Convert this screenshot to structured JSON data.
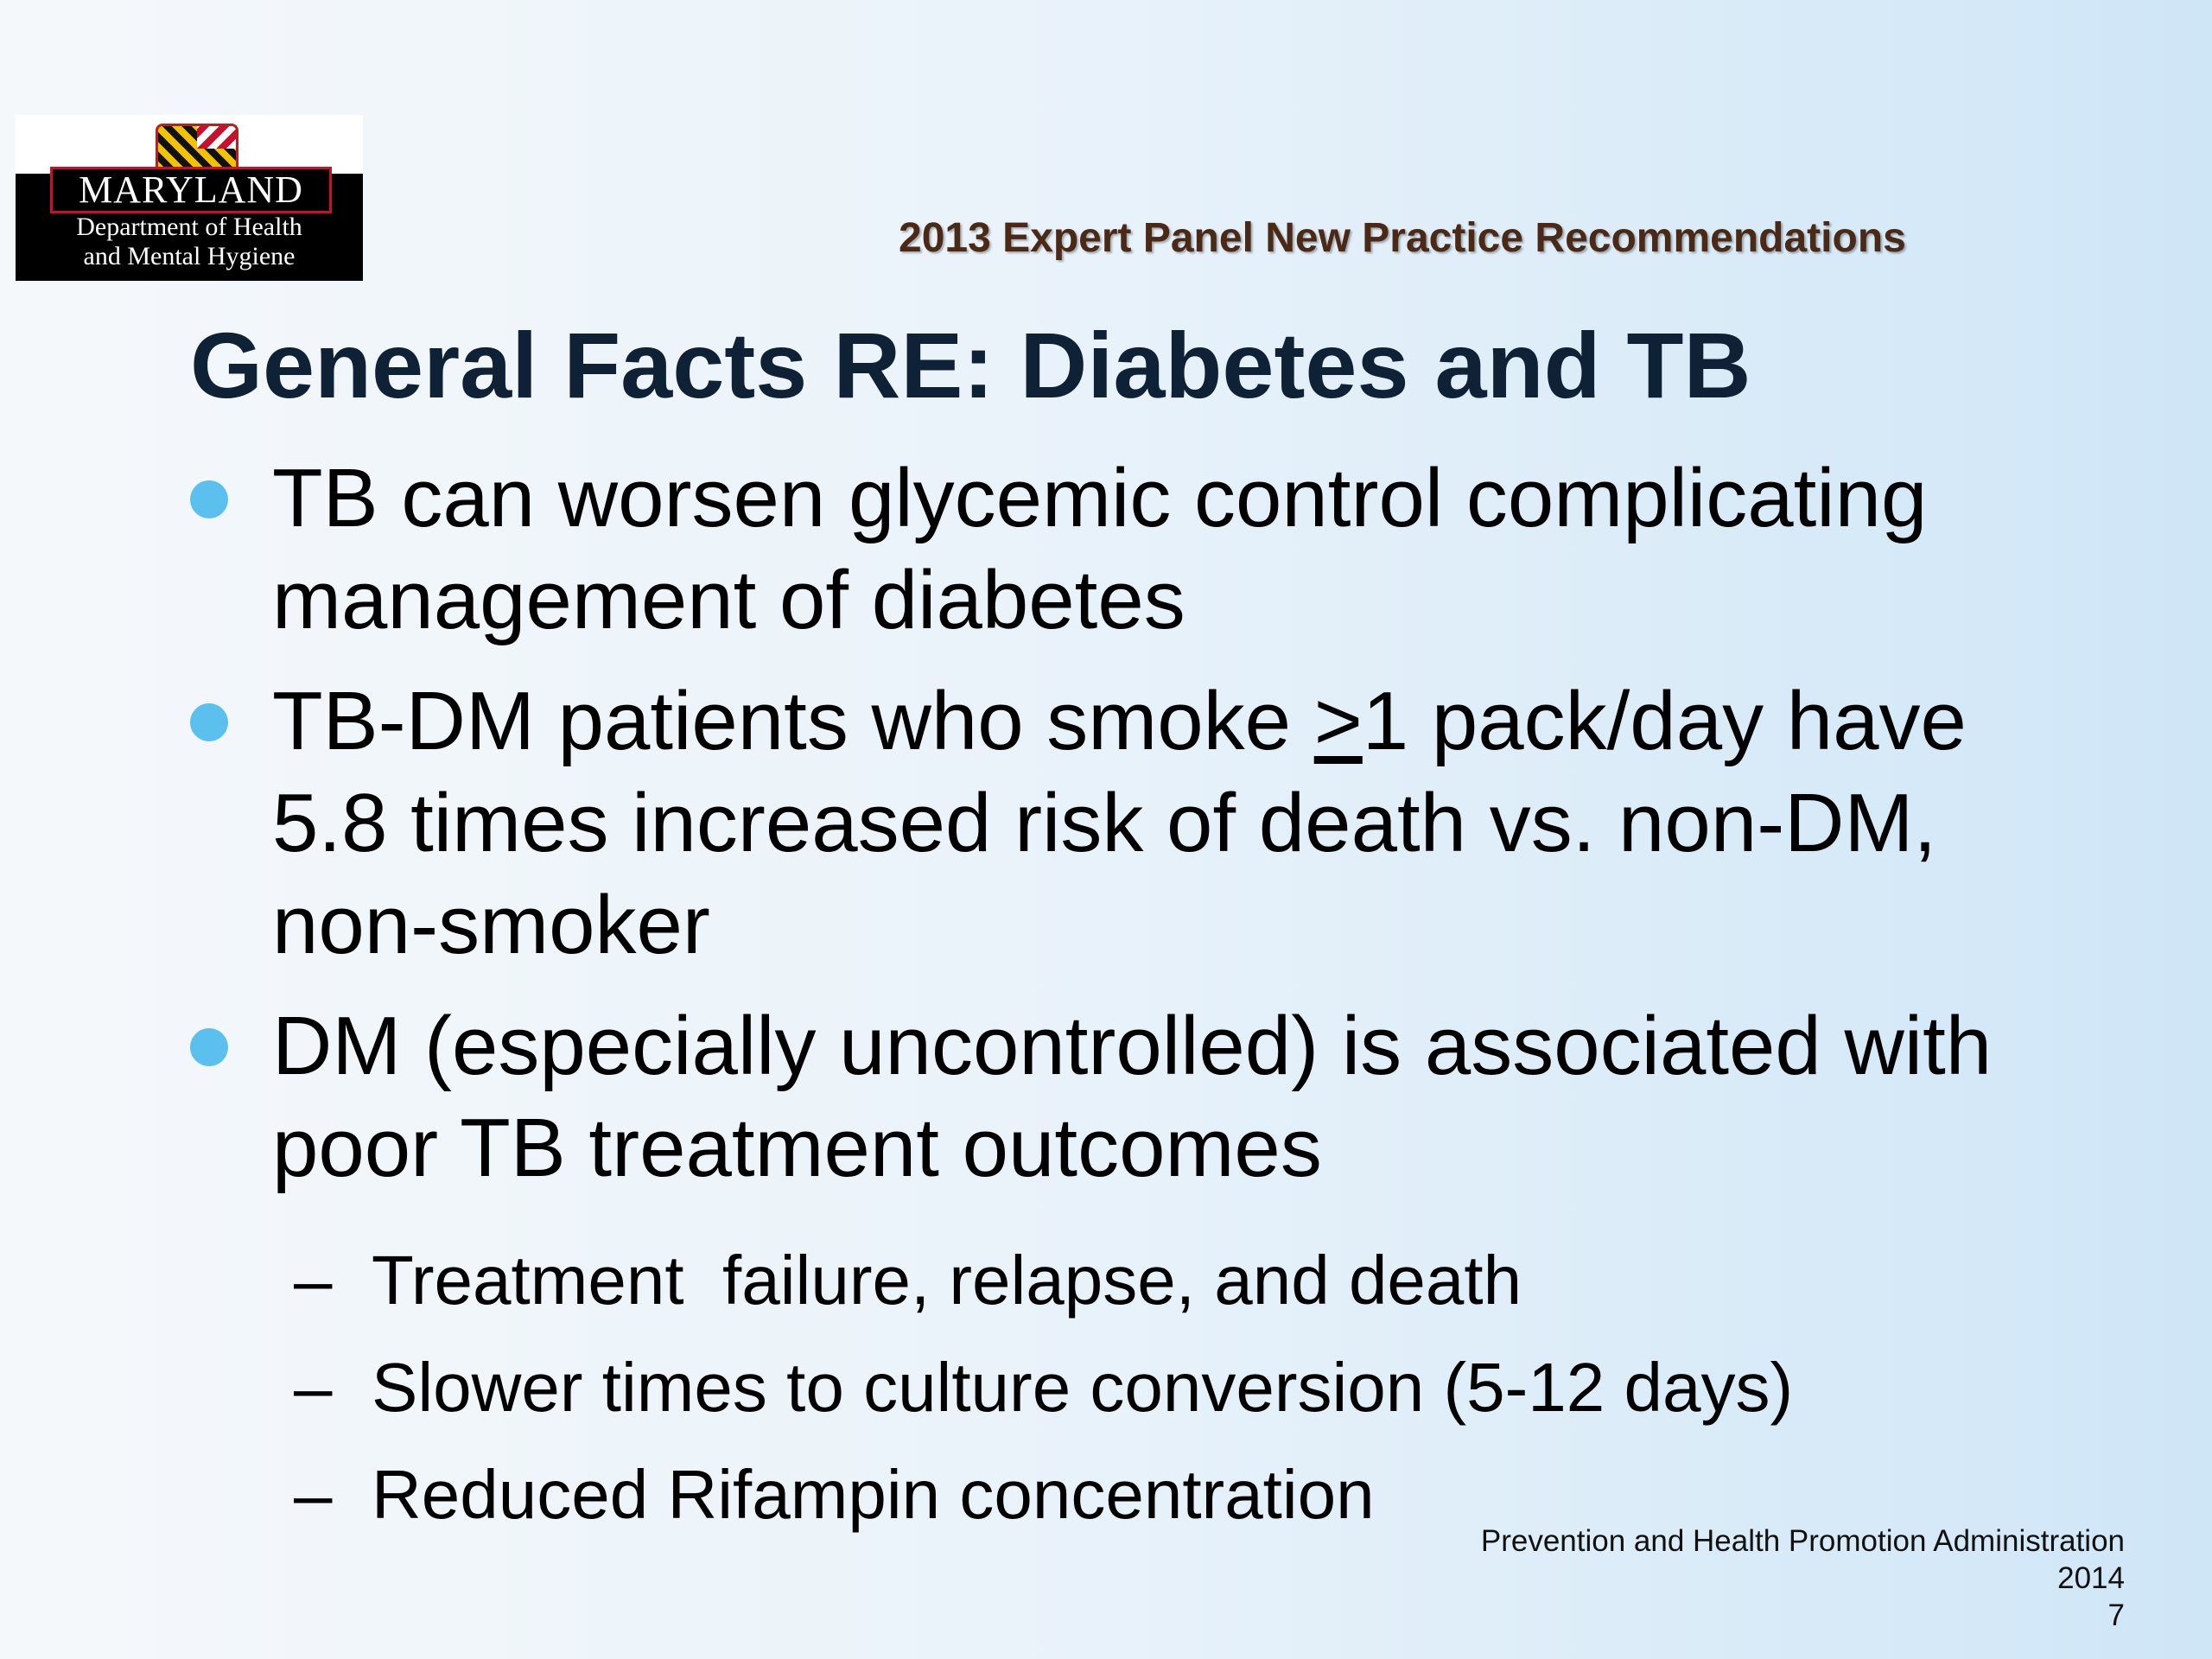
{
  "logo": {
    "name": "MARYLAND",
    "dept_line1": "Department of Health",
    "dept_line2": "and Mental Hygiene"
  },
  "header": {
    "title": "2013 Expert Panel New Practice Recommendations"
  },
  "slide": {
    "title": "General Facts RE: Diabetes and TB",
    "bullets": [
      {
        "text": "TB can worsen glycemic control complicating management of diabetes"
      },
      {
        "text_pre": "TB-DM patients who smoke ",
        "text_symbol": ">",
        "text_post": "1 pack/day have 5.8 times increased risk of death vs. non-DM, non-smoker"
      },
      {
        "text": "DM (especially uncontrolled) is associated with poor TB treatment outcomes"
      }
    ],
    "subbullets": [
      {
        "dash": "–",
        "text": "Treatment  failure, relapse, and death"
      },
      {
        "dash": "–",
        "text": "Slower times to culture conversion (5-12 days)"
      },
      {
        "dash": "–",
        "text": "Reduced Rifampin concentration"
      }
    ]
  },
  "footer": {
    "line1": "Prevention and Health Promotion Administration",
    "line2": "2014",
    "page_number": "7"
  },
  "colors": {
    "bullet_dot": "#5bc0ee",
    "title": "#0f2235",
    "header_title": "#4a2a17"
  }
}
